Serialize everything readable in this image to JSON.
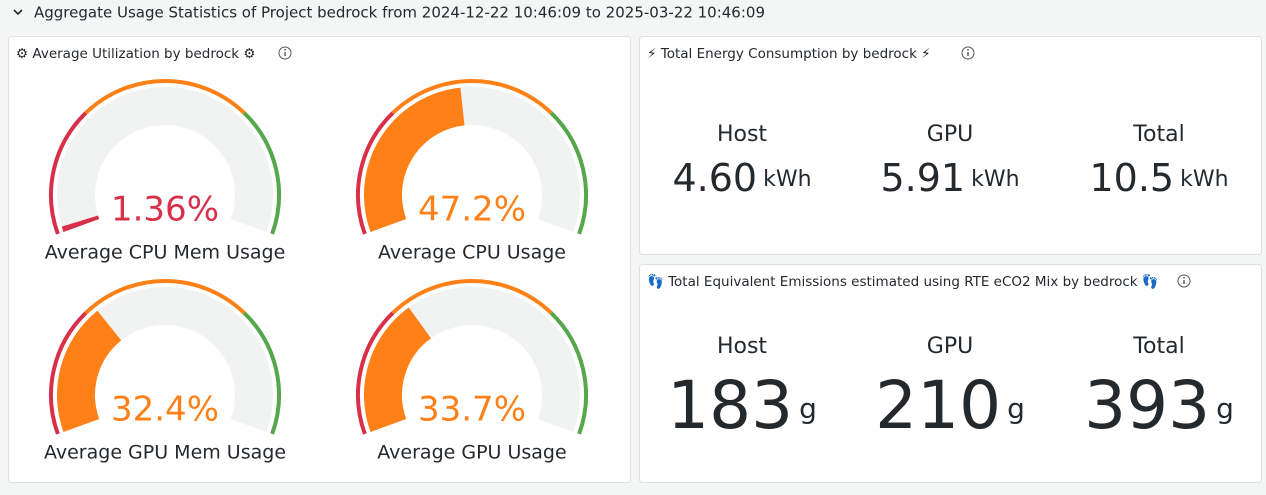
{
  "header": {
    "title": "Aggregate Usage Statistics of Project bedrock from 2024-12-22 10:46:09 to 2025-03-22 10:46:09"
  },
  "utilization": {
    "title": "⚙ Average Utilization by bedrock ⚙",
    "min": 0,
    "max": 100,
    "thresholds": [
      {
        "value": 0,
        "color": "#d9304a"
      },
      {
        "value": 30,
        "color": "#ff8017"
      },
      {
        "value": 70,
        "color": "#56a64b"
      }
    ],
    "gauges": [
      {
        "title": "Average CPU Mem Usage",
        "value": 1.36,
        "label": "1.36%"
      },
      {
        "title": "Average CPU Usage",
        "value": 47.2,
        "label": "47.2%"
      },
      {
        "title": "Average GPU Mem Usage",
        "value": 32.4,
        "label": "32.4%"
      },
      {
        "title": "Average GPU Usage",
        "value": 33.7,
        "label": "33.7%"
      }
    ]
  },
  "energy": {
    "title": "⚡ Total Energy Consumption by bedrock ⚡",
    "stats": [
      {
        "name": "Host",
        "value": "4.60",
        "unit": "kWh"
      },
      {
        "name": "GPU",
        "value": "5.91",
        "unit": "kWh"
      },
      {
        "name": "Total",
        "value": "10.5",
        "unit": "kWh"
      }
    ]
  },
  "emissions": {
    "title": "👣 Total Equivalent Emissions estimated using RTE eCO2 Mix by bedrock 👣",
    "stats": [
      {
        "name": "Host",
        "value": "183",
        "unit": "g"
      },
      {
        "name": "GPU",
        "value": "210",
        "unit": "g"
      },
      {
        "name": "Total",
        "value": "393",
        "unit": "g"
      }
    ]
  }
}
